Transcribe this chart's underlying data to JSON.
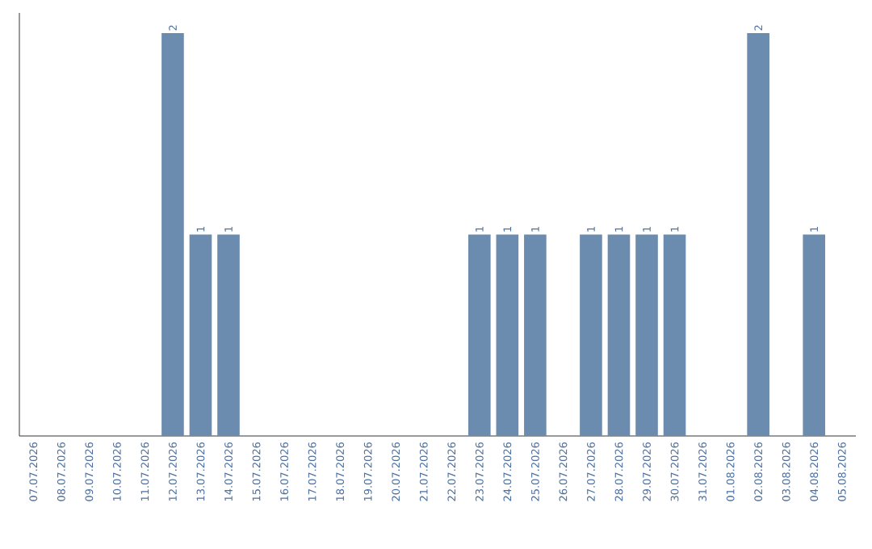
{
  "chart_data": {
    "type": "bar",
    "categories": [
      "07.07.2026",
      "08.07.2026",
      "09.07.2026",
      "10.07.2026",
      "11.07.2026",
      "12.07.2026",
      "13.07.2026",
      "14.07.2026",
      "15.07.2026",
      "16.07.2026",
      "17.07.2026",
      "18.07.2026",
      "19.07.2026",
      "20.07.2026",
      "21.07.2026",
      "22.07.2026",
      "23.07.2026",
      "24.07.2026",
      "25.07.2026",
      "26.07.2026",
      "27.07.2026",
      "28.07.2026",
      "29.07.2026",
      "30.07.2026",
      "31.07.2026",
      "01.08.2026",
      "02.08.2026",
      "03.08.2026",
      "04.08.2026",
      "05.08.2026"
    ],
    "values": [
      0,
      0,
      0,
      0,
      0,
      2,
      1,
      1,
      0,
      0,
      0,
      0,
      0,
      0,
      0,
      0,
      1,
      1,
      1,
      0,
      1,
      1,
      1,
      1,
      0,
      0,
      2,
      0,
      1,
      0
    ],
    "value_labels": [
      null,
      null,
      null,
      null,
      null,
      "2",
      "1",
      "1",
      null,
      null,
      null,
      null,
      null,
      null,
      null,
      null,
      "1",
      "1",
      "1",
      null,
      "1",
      "1",
      "1",
      "1",
      null,
      null,
      "2",
      null,
      "1",
      null
    ],
    "color": "#6b8cae",
    "tick_labels": "x"
  }
}
